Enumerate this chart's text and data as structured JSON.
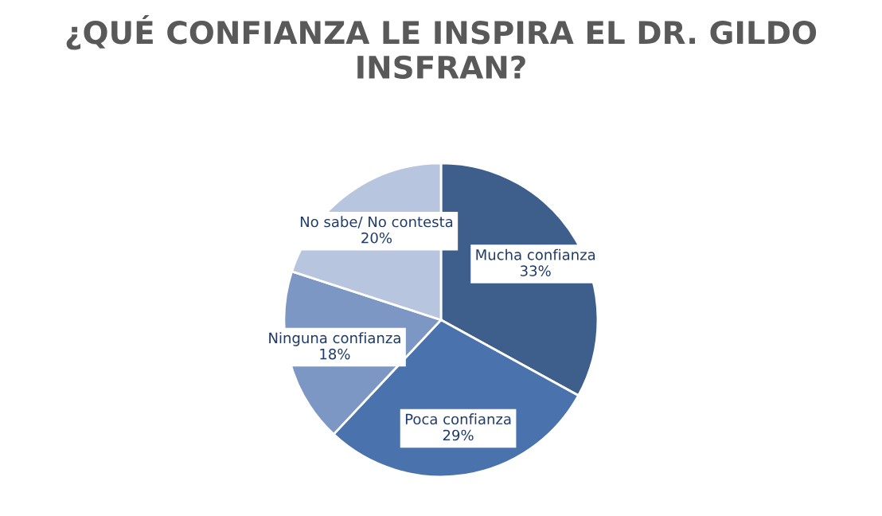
{
  "chart_data": {
    "type": "pie",
    "title": "¿QUÉ CONFIANZA LE INSPIRA EL DR. GILDO INSFRAN?",
    "categories": [
      "Mucha confianza",
      "Poca confianza",
      "Ninguna confianza",
      "No sabe/ No contesta"
    ],
    "values": [
      33,
      29,
      18,
      20
    ],
    "colors": [
      "#3e5f8c",
      "#4a72ad",
      "#7d97c4",
      "#b8c5de"
    ],
    "value_labels": [
      "33%",
      "29%",
      "18%",
      "20%"
    ]
  }
}
